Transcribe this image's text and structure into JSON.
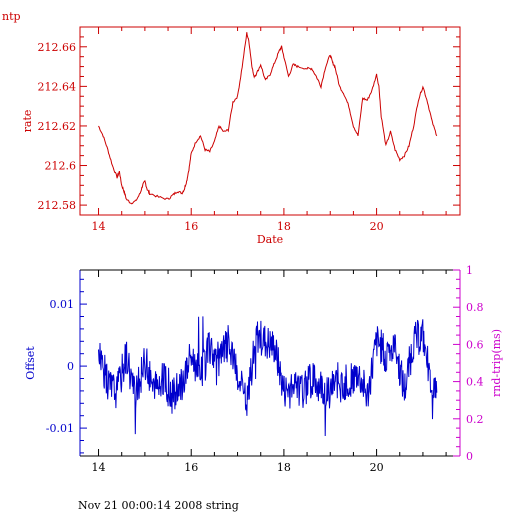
{
  "page": {
    "corner_label": "ntp",
    "footer": "Nov 21 00:00:14 2008 string"
  },
  "colors": {
    "rate": "#cc0000",
    "offset": "#0000cc",
    "rndtrip": "#cc00cc",
    "axis_black": "#000000"
  },
  "chart_data": [
    {
      "type": "line",
      "ylabel": "rate",
      "xlabel": "Date",
      "xlim": [
        13.6,
        21.8
      ],
      "ylim": [
        212.575,
        212.67
      ],
      "x_ticks": [
        14,
        16,
        18,
        20
      ],
      "y_ticks": [
        212.58,
        212.6,
        212.62,
        212.64,
        212.66
      ],
      "x_tick_labels": [
        "14",
        "16",
        "18",
        "20"
      ],
      "y_tick_labels": [
        "212.58",
        "212.6",
        "212.62",
        "212.64",
        "212.66"
      ],
      "series": [
        {
          "x": [
            14.0,
            14.1,
            14.2,
            14.3,
            14.4,
            14.45,
            14.5,
            14.55,
            14.6,
            14.7,
            14.8,
            14.9,
            14.95,
            15.0,
            15.05,
            15.1,
            15.3,
            15.5,
            15.6,
            15.7,
            15.8,
            15.85,
            15.9,
            15.95,
            16.0,
            16.1,
            16.2,
            16.3,
            16.4,
            16.5,
            16.6,
            16.7,
            16.8,
            16.9,
            17.0,
            17.1,
            17.2,
            17.25,
            17.3,
            17.35,
            17.4,
            17.5,
            17.6,
            17.7,
            17.8,
            17.9,
            17.95,
            18.0,
            18.1,
            18.2,
            18.3,
            18.5,
            18.6,
            18.7,
            18.8,
            18.9,
            19.0,
            19.05,
            19.1,
            19.2,
            19.3,
            19.4,
            19.5,
            19.6,
            19.7,
            19.8,
            19.9,
            20.0,
            20.05,
            20.1,
            20.2,
            20.3,
            20.4,
            20.5,
            20.6,
            20.7,
            20.8,
            20.9,
            21.0,
            21.1,
            21.2,
            21.3
          ],
          "y": [
            212.62,
            212.615,
            212.608,
            212.6,
            212.594,
            212.597,
            212.59,
            212.587,
            212.583,
            212.581,
            212.582,
            212.586,
            212.59,
            212.592,
            212.588,
            212.586,
            212.584,
            212.583,
            212.585,
            212.587,
            212.586,
            212.588,
            212.592,
            212.598,
            212.606,
            212.612,
            212.615,
            212.608,
            212.607,
            212.612,
            212.62,
            212.617,
            212.618,
            212.632,
            212.635,
            212.65,
            212.667,
            212.662,
            212.652,
            212.645,
            212.646,
            212.651,
            212.643,
            212.646,
            212.652,
            212.658,
            212.66,
            212.655,
            212.645,
            212.651,
            212.65,
            212.649,
            212.649,
            212.645,
            212.64,
            212.65,
            212.656,
            212.652,
            212.65,
            212.64,
            212.636,
            212.63,
            212.62,
            212.615,
            212.634,
            212.633,
            212.638,
            212.646,
            212.64,
            212.625,
            212.61,
            212.617,
            212.608,
            212.603,
            212.605,
            212.61,
            212.62,
            212.633,
            212.64,
            212.632,
            212.622,
            212.615
          ]
        }
      ]
    },
    {
      "type": "line",
      "ylabel": "Offset",
      "y2label": "rnd-trip(ms)",
      "xlim": [
        13.6,
        21.8
      ],
      "ylim": [
        -0.0145,
        0.0155
      ],
      "y2lim": [
        0,
        1
      ],
      "x_ticks": [
        14,
        16,
        18,
        20
      ],
      "y_ticks": [
        -0.01,
        0,
        0.01
      ],
      "y2_ticks": [
        0,
        0.2,
        0.4,
        0.6,
        0.8,
        1
      ],
      "x_tick_labels": [
        "14",
        "16",
        "18",
        "20"
      ],
      "y_tick_labels": [
        "-0.01",
        "0",
        "0.01"
      ],
      "y2_tick_labels": [
        "0",
        "0.2",
        "0.4",
        "0.6",
        "0.8",
        "1"
      ],
      "series": [
        {
          "x": [
            14.0,
            14.2,
            14.4,
            14.6,
            14.8,
            15.0,
            15.2,
            15.4,
            15.6,
            15.8,
            16.0,
            16.2,
            16.4,
            16.6,
            16.8,
            17.0,
            17.2,
            17.4,
            17.6,
            17.8,
            18.0,
            18.2,
            18.4,
            18.6,
            18.8,
            19.0,
            19.2,
            19.4,
            19.6,
            19.8,
            20.0,
            20.2,
            20.4,
            20.6,
            20.8,
            21.0,
            21.2,
            21.3
          ],
          "y": [
            0.003,
            -0.003,
            -0.004,
            0.002,
            -0.005,
            0.001,
            -0.004,
            -0.002,
            -0.005,
            -0.003,
            0.002,
            -0.002,
            0.003,
            0.001,
            0.004,
            -0.002,
            -0.006,
            0.005,
            0.004,
            0.003,
            -0.004,
            -0.003,
            -0.004,
            -0.002,
            -0.003,
            -0.004,
            -0.002,
            -0.003,
            -0.001,
            -0.005,
            0.004,
            0.002,
            0.003,
            -0.004,
            0.004,
            0.005,
            -0.004,
            -0.003
          ]
        }
      ]
    }
  ]
}
